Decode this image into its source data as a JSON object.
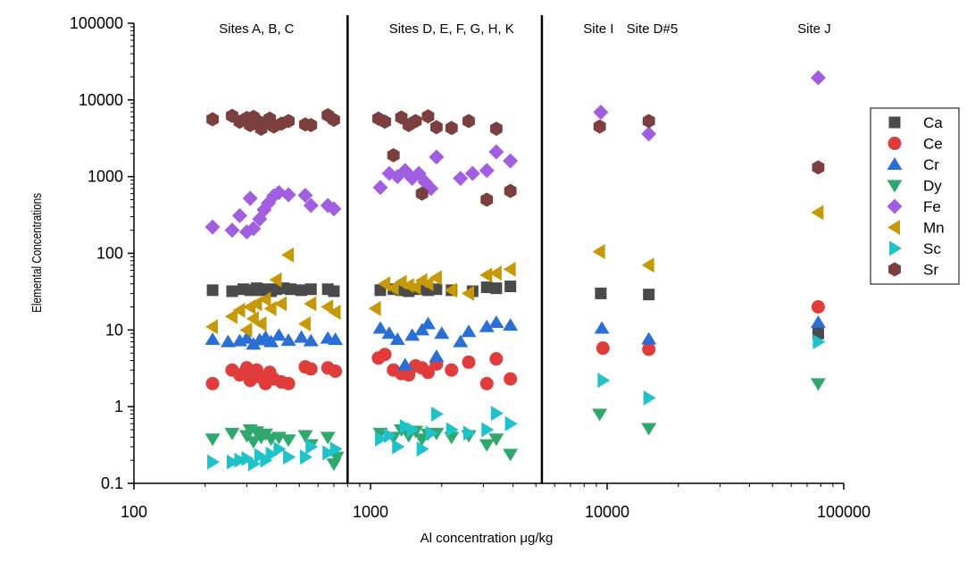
{
  "chart_data": {
    "type": "scatter",
    "xlabel": "Al concentration μg/kg",
    "ylabel": "Elemental Concentrations",
    "xscale": "log",
    "yscale": "log",
    "xlim": [
      100,
      100000
    ],
    "ylim": [
      0.1,
      100000
    ],
    "x_ticks": [
      "100",
      "1000",
      "10000",
      "100000"
    ],
    "y_ticks": [
      "0.1",
      "1",
      "10",
      "100",
      "1000",
      "10000",
      "100000"
    ],
    "dividers_x": [
      800,
      5300
    ],
    "regions": [
      {
        "label": "Sites A, B, C",
        "x": 330
      },
      {
        "label": "Sites D, E, F, G, H, K",
        "x": 2200
      },
      {
        "label": "Site I",
        "x": 9200
      },
      {
        "label": "Site D#5",
        "x": 15500
      },
      {
        "label": "Site J",
        "x": 75000
      }
    ],
    "legend_position": "right",
    "series": [
      {
        "name": "Ca",
        "marker": "square",
        "color": "#4a4a4a",
        "points": [
          [
            215,
            33
          ],
          [
            260,
            32
          ],
          [
            290,
            34
          ],
          [
            310,
            33
          ],
          [
            330,
            35
          ],
          [
            345,
            33
          ],
          [
            360,
            34
          ],
          [
            380,
            32
          ],
          [
            400,
            34
          ],
          [
            430,
            35
          ],
          [
            460,
            34
          ],
          [
            510,
            33
          ],
          [
            560,
            34
          ],
          [
            660,
            34
          ],
          [
            700,
            32
          ],
          [
            1100,
            33
          ],
          [
            1250,
            34
          ],
          [
            1350,
            33
          ],
          [
            1450,
            32
          ],
          [
            1600,
            34
          ],
          [
            1750,
            33
          ],
          [
            1900,
            34
          ],
          [
            2200,
            33
          ],
          [
            2700,
            32
          ],
          [
            3100,
            36
          ],
          [
            3400,
            35
          ],
          [
            3900,
            37
          ],
          [
            9400,
            30
          ],
          [
            15000,
            29
          ],
          [
            78000,
            9
          ]
        ]
      },
      {
        "name": "Ce",
        "marker": "circle",
        "color": "#e03c3c",
        "points": [
          [
            215,
            2.0
          ],
          [
            260,
            3.0
          ],
          [
            280,
            2.6
          ],
          [
            300,
            3.2
          ],
          [
            310,
            2.2
          ],
          [
            330,
            3.0
          ],
          [
            345,
            2.4
          ],
          [
            360,
            2.0
          ],
          [
            375,
            2.8
          ],
          [
            390,
            2.3
          ],
          [
            420,
            2.1
          ],
          [
            450,
            2.0
          ],
          [
            530,
            3.3
          ],
          [
            560,
            3.1
          ],
          [
            660,
            3.2
          ],
          [
            710,
            2.9
          ],
          [
            1080,
            4.3
          ],
          [
            1150,
            4.8
          ],
          [
            1250,
            3.0
          ],
          [
            1350,
            2.7
          ],
          [
            1450,
            2.6
          ],
          [
            1550,
            3.4
          ],
          [
            1650,
            3.2
          ],
          [
            1750,
            2.8
          ],
          [
            1900,
            3.6
          ],
          [
            2200,
            3.0
          ],
          [
            2600,
            3.8
          ],
          [
            3100,
            2.0
          ],
          [
            3400,
            4.2
          ],
          [
            3900,
            2.3
          ],
          [
            9600,
            5.8
          ],
          [
            15000,
            5.6
          ],
          [
            78000,
            20
          ]
        ]
      },
      {
        "name": "Cr",
        "marker": "triangle-up",
        "color": "#2a6fd6",
        "points": [
          [
            215,
            7.5
          ],
          [
            250,
            7.0
          ],
          [
            280,
            7.2
          ],
          [
            300,
            7.8
          ],
          [
            320,
            6.5
          ],
          [
            340,
            7.4
          ],
          [
            360,
            8.0
          ],
          [
            380,
            7.0
          ],
          [
            410,
            8.5
          ],
          [
            450,
            7.3
          ],
          [
            510,
            8.0
          ],
          [
            560,
            7.2
          ],
          [
            660,
            7.8
          ],
          [
            710,
            7.5
          ],
          [
            1100,
            10.5
          ],
          [
            1200,
            9.0
          ],
          [
            1300,
            7.5
          ],
          [
            1400,
            3.5
          ],
          [
            1500,
            8.5
          ],
          [
            1650,
            10.0
          ],
          [
            1750,
            12.0
          ],
          [
            1900,
            4.5
          ],
          [
            2000,
            9.0
          ],
          [
            2400,
            7.0
          ],
          [
            2600,
            9.5
          ],
          [
            3100,
            11.0
          ],
          [
            3400,
            12.5
          ],
          [
            3900,
            11.5
          ],
          [
            9500,
            10.5
          ],
          [
            15000,
            7.6
          ],
          [
            78000,
            12.5
          ]
        ]
      },
      {
        "name": "Dy",
        "marker": "triangle-down",
        "color": "#2fa86e",
        "points": [
          [
            215,
            0.38
          ],
          [
            260,
            0.45
          ],
          [
            300,
            0.42
          ],
          [
            310,
            0.5
          ],
          [
            320,
            0.35
          ],
          [
            330,
            0.47
          ],
          [
            345,
            0.4
          ],
          [
            360,
            0.44
          ],
          [
            380,
            0.38
          ],
          [
            410,
            0.4
          ],
          [
            450,
            0.37
          ],
          [
            530,
            0.42
          ],
          [
            560,
            0.32
          ],
          [
            660,
            0.4
          ],
          [
            700,
            0.18
          ],
          [
            720,
            0.22
          ],
          [
            1100,
            0.45
          ],
          [
            1250,
            0.4
          ],
          [
            1350,
            0.5
          ],
          [
            1450,
            0.42
          ],
          [
            1550,
            0.48
          ],
          [
            1650,
            0.38
          ],
          [
            1750,
            0.44
          ],
          [
            1900,
            0.45
          ],
          [
            2200,
            0.4
          ],
          [
            2600,
            0.42
          ],
          [
            3100,
            0.32
          ],
          [
            3400,
            0.38
          ],
          [
            3900,
            0.24
          ],
          [
            9300,
            0.8
          ],
          [
            15000,
            0.52
          ],
          [
            78000,
            2.0
          ]
        ]
      },
      {
        "name": "Fe",
        "marker": "diamond",
        "color": "#a25ee0",
        "points": [
          [
            215,
            220
          ],
          [
            260,
            200
          ],
          [
            280,
            310
          ],
          [
            300,
            190
          ],
          [
            310,
            520
          ],
          [
            320,
            210
          ],
          [
            340,
            280
          ],
          [
            355,
            370
          ],
          [
            370,
            450
          ],
          [
            390,
            560
          ],
          [
            410,
            620
          ],
          [
            450,
            580
          ],
          [
            530,
            570
          ],
          [
            560,
            420
          ],
          [
            660,
            420
          ],
          [
            700,
            380
          ],
          [
            1100,
            720
          ],
          [
            1200,
            1100
          ],
          [
            1300,
            1000
          ],
          [
            1400,
            1200
          ],
          [
            1500,
            950
          ],
          [
            1600,
            1100
          ],
          [
            1700,
            850
          ],
          [
            1800,
            700
          ],
          [
            1900,
            1800
          ],
          [
            2400,
            950
          ],
          [
            2700,
            1100
          ],
          [
            3100,
            1200
          ],
          [
            3400,
            2100
          ],
          [
            3900,
            1600
          ],
          [
            9400,
            6900
          ],
          [
            15000,
            3600
          ],
          [
            78000,
            19500
          ]
        ]
      },
      {
        "name": "Mn",
        "marker": "triangle-left",
        "color": "#c69a06",
        "points": [
          [
            215,
            11
          ],
          [
            260,
            15
          ],
          [
            280,
            18
          ],
          [
            300,
            10
          ],
          [
            310,
            20
          ],
          [
            320,
            14
          ],
          [
            330,
            22
          ],
          [
            345,
            12
          ],
          [
            360,
            25
          ],
          [
            380,
            19
          ],
          [
            400,
            45
          ],
          [
            420,
            22
          ],
          [
            450,
            95
          ],
          [
            530,
            12
          ],
          [
            560,
            22
          ],
          [
            660,
            20
          ],
          [
            710,
            17
          ],
          [
            1050,
            19
          ],
          [
            1150,
            40
          ],
          [
            1250,
            35
          ],
          [
            1350,
            42
          ],
          [
            1450,
            38
          ],
          [
            1550,
            36
          ],
          [
            1650,
            44
          ],
          [
            1750,
            40
          ],
          [
            1900,
            48
          ],
          [
            2200,
            33
          ],
          [
            2600,
            30
          ],
          [
            3100,
            52
          ],
          [
            3400,
            55
          ],
          [
            3900,
            62
          ],
          [
            9300,
            105
          ],
          [
            15000,
            70
          ],
          [
            78000,
            340
          ]
        ]
      },
      {
        "name": "Sc",
        "marker": "triangle-right",
        "color": "#1ec2c9",
        "points": [
          [
            215,
            0.19
          ],
          [
            260,
            0.19
          ],
          [
            280,
            0.2
          ],
          [
            300,
            0.21
          ],
          [
            320,
            0.18
          ],
          [
            340,
            0.23
          ],
          [
            360,
            0.2
          ],
          [
            380,
            0.24
          ],
          [
            410,
            0.28
          ],
          [
            450,
            0.22
          ],
          [
            530,
            0.22
          ],
          [
            560,
            0.3
          ],
          [
            660,
            0.25
          ],
          [
            710,
            0.28
          ],
          [
            1100,
            0.38
          ],
          [
            1200,
            0.42
          ],
          [
            1300,
            0.3
          ],
          [
            1400,
            0.55
          ],
          [
            1500,
            0.5
          ],
          [
            1650,
            0.28
          ],
          [
            1800,
            0.45
          ],
          [
            1900,
            0.8
          ],
          [
            2200,
            0.5
          ],
          [
            2600,
            0.45
          ],
          [
            3100,
            0.5
          ],
          [
            3400,
            0.82
          ],
          [
            3900,
            0.6
          ],
          [
            9600,
            2.2
          ],
          [
            15000,
            1.3
          ],
          [
            78000,
            7.0
          ]
        ]
      },
      {
        "name": "Sr",
        "marker": "hexagon",
        "color": "#7b3f3f",
        "points": [
          [
            215,
            5600
          ],
          [
            260,
            6200
          ],
          [
            280,
            5200
          ],
          [
            300,
            5800
          ],
          [
            310,
            4700
          ],
          [
            320,
            6000
          ],
          [
            330,
            5400
          ],
          [
            345,
            4200
          ],
          [
            360,
            5100
          ],
          [
            375,
            5700
          ],
          [
            390,
            4500
          ],
          [
            420,
            4900
          ],
          [
            450,
            5300
          ],
          [
            530,
            4800
          ],
          [
            560,
            4700
          ],
          [
            660,
            6300
          ],
          [
            700,
            5500
          ],
          [
            1080,
            5700
          ],
          [
            1150,
            5200
          ],
          [
            1250,
            1900
          ],
          [
            1350,
            5900
          ],
          [
            1450,
            4700
          ],
          [
            1550,
            5300
          ],
          [
            1650,
            600
          ],
          [
            1750,
            6100
          ],
          [
            1900,
            4400
          ],
          [
            2200,
            4300
          ],
          [
            2600,
            5300
          ],
          [
            3100,
            500
          ],
          [
            3400,
            4200
          ],
          [
            3900,
            650
          ],
          [
            9300,
            4500
          ],
          [
            15000,
            5300
          ],
          [
            78000,
            1320
          ]
        ]
      }
    ]
  }
}
